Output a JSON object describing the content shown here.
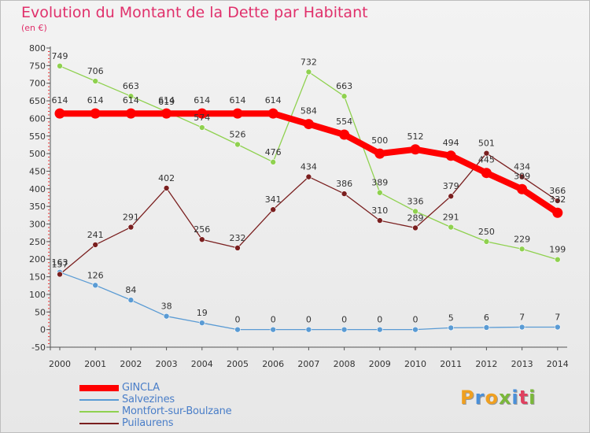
{
  "title": "Evolution du Montant de la Dette par Habitant",
  "subtitle": "(en €)",
  "logo_text": "Proxiti",
  "chart_data": {
    "type": "line",
    "title": "Evolution du Montant de la Dette par Habitant",
    "subtitle": "(en €)",
    "xlabel": "",
    "ylabel": "",
    "x": [
      "2000",
      "2001",
      "2002",
      "2003",
      "2004",
      "2005",
      "2006",
      "2007",
      "2008",
      "2009",
      "2010",
      "2011",
      "2012",
      "2013",
      "2014"
    ],
    "y_ticks": [
      "800",
      "750",
      "700",
      "650",
      "600",
      "550",
      "500",
      "450",
      "400",
      "350",
      "300",
      "250",
      "200",
      "150",
      "100",
      "50",
      "0",
      "-50"
    ],
    "ylim": [
      -50,
      800
    ],
    "grid": false,
    "legend_position": "bottom-left",
    "series": [
      {
        "name": "GINCLA",
        "color": "#ff0000",
        "values": [
          614,
          614,
          614,
          614,
          614,
          614,
          614,
          584,
          554,
          500,
          512,
          494,
          445,
          399,
          332
        ],
        "labels": [
          "614",
          "614",
          "614",
          "614",
          "614",
          "614",
          "614",
          "584",
          "554",
          "500",
          "512",
          "494",
          "445",
          "399",
          "332"
        ]
      },
      {
        "name": "Salvezines",
        "color": "#5a9bd4",
        "values": [
          163,
          126,
          84,
          38,
          19,
          0,
          0,
          0,
          0,
          0,
          0,
          5,
          6,
          7,
          7
        ],
        "labels": [
          "163",
          "126",
          "84",
          "38",
          "19",
          "0",
          "0",
          "0",
          "0",
          "0",
          "0",
          "5",
          "6",
          "7",
          "7"
        ]
      },
      {
        "name": "Montfort-sur-Boulzane",
        "color": "#8fd14f",
        "values": [
          749,
          706,
          663,
          619,
          574,
          526,
          476,
          732,
          663,
          389,
          336,
          291,
          250,
          229,
          199
        ],
        "labels": [
          "749",
          "706",
          "663",
          "619",
          "574",
          "526",
          "476",
          "732",
          "663",
          "389",
          "336",
          "291",
          "250",
          "229",
          "199"
        ]
      },
      {
        "name": "Puilaurens",
        "color": "#7a1f1f",
        "values": [
          157,
          241,
          291,
          402,
          256,
          232,
          341,
          434,
          386,
          310,
          289,
          379,
          501,
          434,
          366
        ],
        "labels": [
          "157",
          "241",
          "291",
          "402",
          "256",
          "232",
          "341",
          "434",
          "386",
          "310",
          "289",
          "379",
          "501",
          "434",
          "366"
        ]
      }
    ]
  }
}
